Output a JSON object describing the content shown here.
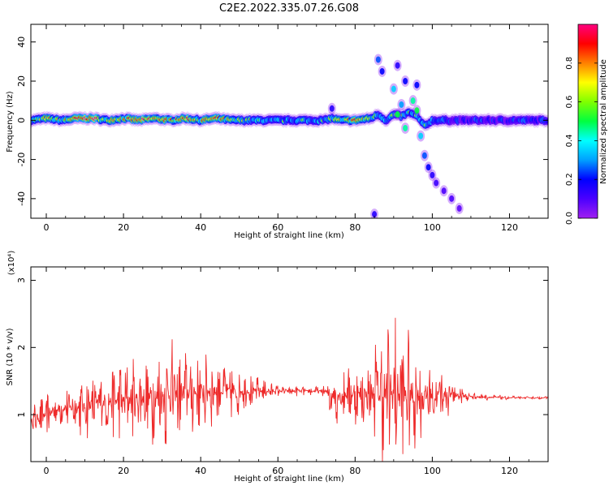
{
  "title": "C2E2.2022.335.07.26.G08",
  "colors": {
    "snr_line": "#ee2a2a",
    "colormap": [
      "#a020f0",
      "#4b00ff",
      "#0000ff",
      "#00a0ff",
      "#00ffff",
      "#00ff40",
      "#80ff00",
      "#ffff00",
      "#ff8000",
      "#ff0000",
      "#ff0080"
    ]
  },
  "chart_data": [
    {
      "type": "heatmap",
      "xlabel": "Height of straight line (km)",
      "ylabel": "Frequency (Hz)",
      "xlim": [
        -4,
        130
      ],
      "ylim": [
        -50,
        49
      ],
      "x_ticks": [
        0,
        20,
        40,
        60,
        80,
        100,
        120
      ],
      "y_ticks": [
        -40,
        -20,
        0,
        20,
        40
      ],
      "colorbar": {
        "label": "Normalized spectral amplitude",
        "range": [
          0.0,
          1.0
        ],
        "ticks": [
          "0.0",
          "0.2",
          "0.4",
          "0.6",
          "0.8"
        ]
      },
      "ridge_x": [
        -4,
        0,
        4,
        8,
        12,
        16,
        20,
        24,
        28,
        32,
        36,
        40,
        44,
        48,
        52,
        56,
        60,
        64,
        68,
        72,
        74,
        76,
        80,
        84,
        86,
        88,
        90,
        92,
        94,
        96,
        98,
        100,
        104,
        110,
        120,
        130
      ],
      "ridge_y": [
        0,
        1,
        0,
        1,
        1,
        0,
        1,
        0,
        1,
        0,
        1,
        0,
        1,
        0,
        0,
        0,
        0,
        0,
        0,
        0,
        1,
        0,
        0,
        1,
        3,
        0,
        3,
        2,
        4,
        2,
        -3,
        0,
        0,
        0,
        0,
        0
      ],
      "ridge_amp": [
        0.5,
        0.7,
        0.6,
        0.9,
        0.95,
        0.6,
        0.7,
        0.85,
        0.8,
        0.75,
        0.8,
        0.7,
        0.75,
        0.65,
        0.55,
        0.5,
        0.45,
        0.45,
        0.45,
        0.5,
        0.55,
        0.6,
        0.8,
        0.6,
        0.55,
        0.45,
        0.55,
        0.5,
        0.45,
        0.5,
        0.5,
        0.4,
        0.25,
        0.25,
        0.25,
        0.25
      ],
      "scatter_blobs": [
        {
          "x": 86,
          "y": 31,
          "amp": 0.25
        },
        {
          "x": 87,
          "y": 25,
          "amp": 0.2
        },
        {
          "x": 90,
          "y": 16,
          "amp": 0.35
        },
        {
          "x": 91,
          "y": 28,
          "amp": 0.15
        },
        {
          "x": 92,
          "y": 8,
          "amp": 0.3
        },
        {
          "x": 93,
          "y": 20,
          "amp": 0.2
        },
        {
          "x": 95,
          "y": 10,
          "amp": 0.45
        },
        {
          "x": 96,
          "y": 18,
          "amp": 0.2
        },
        {
          "x": 97,
          "y": -8,
          "amp": 0.35
        },
        {
          "x": 98,
          "y": -18,
          "amp": 0.25
        },
        {
          "x": 99,
          "y": -24,
          "amp": 0.2
        },
        {
          "x": 100,
          "y": -28,
          "amp": 0.15
        },
        {
          "x": 101,
          "y": -32,
          "amp": 0.12
        },
        {
          "x": 103,
          "y": -36,
          "amp": 0.1
        },
        {
          "x": 105,
          "y": -40,
          "amp": 0.1
        },
        {
          "x": 107,
          "y": -45,
          "amp": 0.08
        },
        {
          "x": 85,
          "y": -48,
          "amp": 0.15
        },
        {
          "x": 74,
          "y": 6,
          "amp": 0.15
        },
        {
          "x": 91,
          "y": 3,
          "amp": 0.5
        },
        {
          "x": 93,
          "y": -4,
          "amp": 0.45
        },
        {
          "x": 96,
          "y": 5,
          "amp": 0.5
        }
      ]
    },
    {
      "type": "line",
      "xlabel": "Height of straight line (km)",
      "ylabel": "SNR (10 * v/v)",
      "exponent_label": "(x10⁴)",
      "xlim": [
        -4,
        130
      ],
      "ylim": [
        0.3,
        3.2
      ],
      "x_ticks": [
        0,
        20,
        40,
        60,
        80,
        100,
        120
      ],
      "y_ticks": [
        1,
        2,
        3
      ],
      "envelope_x": [
        -4,
        0,
        4,
        8,
        12,
        16,
        20,
        24,
        28,
        32,
        36,
        40,
        44,
        48,
        52,
        56,
        60,
        64,
        68,
        72,
        74,
        76,
        80,
        84,
        86,
        88,
        90,
        92,
        94,
        96,
        98,
        100,
        102,
        104,
        106,
        108,
        110,
        114,
        120,
        125,
        130
      ],
      "envelope_mean": [
        0.9,
        1.0,
        1.1,
        1.1,
        1.15,
        1.2,
        1.2,
        1.25,
        1.25,
        1.3,
        1.3,
        1.35,
        1.35,
        1.35,
        1.35,
        1.35,
        1.35,
        1.35,
        1.35,
        1.35,
        1.3,
        1.3,
        1.3,
        1.3,
        1.3,
        1.3,
        1.3,
        1.3,
        1.3,
        1.3,
        1.3,
        1.3,
        1.3,
        1.3,
        1.3,
        1.28,
        1.27,
        1.26,
        1.25,
        1.25,
        1.25
      ],
      "envelope_amp": [
        0.25,
        0.35,
        0.3,
        0.45,
        0.55,
        0.5,
        0.7,
        0.6,
        0.8,
        0.9,
        0.7,
        0.65,
        0.55,
        0.45,
        0.3,
        0.2,
        0.1,
        0.08,
        0.07,
        0.08,
        0.55,
        0.45,
        0.5,
        0.55,
        1.1,
        1.2,
        1.4,
        1.1,
        1.0,
        0.9,
        0.75,
        0.65,
        0.5,
        0.35,
        0.22,
        0.14,
        0.08,
        0.05,
        0.03,
        0.02,
        0.02
      ]
    }
  ]
}
